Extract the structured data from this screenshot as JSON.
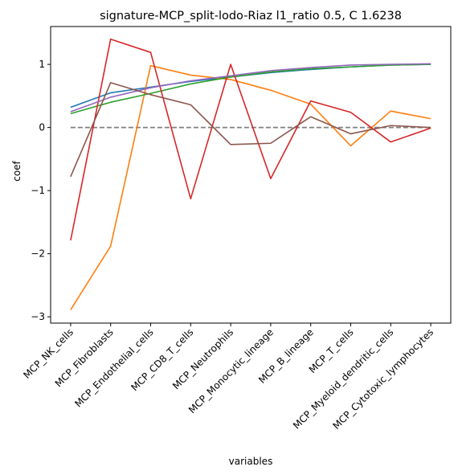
{
  "chart_data": {
    "type": "line",
    "title": "signature-MCP_split-lodo-Riaz l1_ratio 0.5, C 1.6238",
    "xlabel": "variables",
    "ylabel": "coef",
    "categories": [
      "MCP_NK_cells",
      "MCP_Fibroblasts",
      "MCP_Endothelial_cells",
      "MCP_CD8_T_cells",
      "MCP_Neutrophils",
      "MCP_Monocytic_lineage",
      "MCP_B_lineage",
      "MCP_T_cells",
      "MCP_Myeloid_dendritic_cells",
      "MCP_Cytotoxic_lymphocytes"
    ],
    "ylim": [
      -3.1,
      1.6
    ],
    "yticks": [
      -3,
      -2,
      -1,
      0,
      1
    ],
    "ytick_labels": [
      "−3",
      "−2",
      "−1",
      "0",
      "1"
    ],
    "grid": false,
    "legend": "none",
    "series": [
      {
        "color": "#1f77b4",
        "values": [
          0.32,
          0.55,
          0.64,
          0.73,
          0.8,
          0.87,
          0.92,
          0.96,
          0.99,
          1.0
        ]
      },
      {
        "color": "#ff7f0e",
        "values": [
          -2.89,
          -1.88,
          0.98,
          0.83,
          0.76,
          0.59,
          0.37,
          -0.29,
          0.26,
          0.14
        ]
      },
      {
        "color": "#2ca02c",
        "values": [
          0.22,
          0.4,
          0.54,
          0.69,
          0.8,
          0.88,
          0.93,
          0.96,
          0.99,
          1.0
        ]
      },
      {
        "color": "#d62728",
        "values": [
          -1.79,
          1.4,
          1.19,
          -1.13,
          1.0,
          -0.81,
          0.42,
          0.24,
          -0.23,
          -0.01
        ]
      },
      {
        "color": "#9467bd",
        "values": [
          0.25,
          0.48,
          0.63,
          0.74,
          0.82,
          0.9,
          0.95,
          0.99,
          1.0,
          1.01
        ]
      },
      {
        "color": "#8c564b",
        "values": [
          -0.78,
          0.71,
          0.52,
          0.36,
          -0.27,
          -0.25,
          0.17,
          -0.1,
          0.03,
          0.0
        ]
      }
    ],
    "reference_line": {
      "y": 0,
      "color": "#808080",
      "style": "dashed"
    }
  }
}
